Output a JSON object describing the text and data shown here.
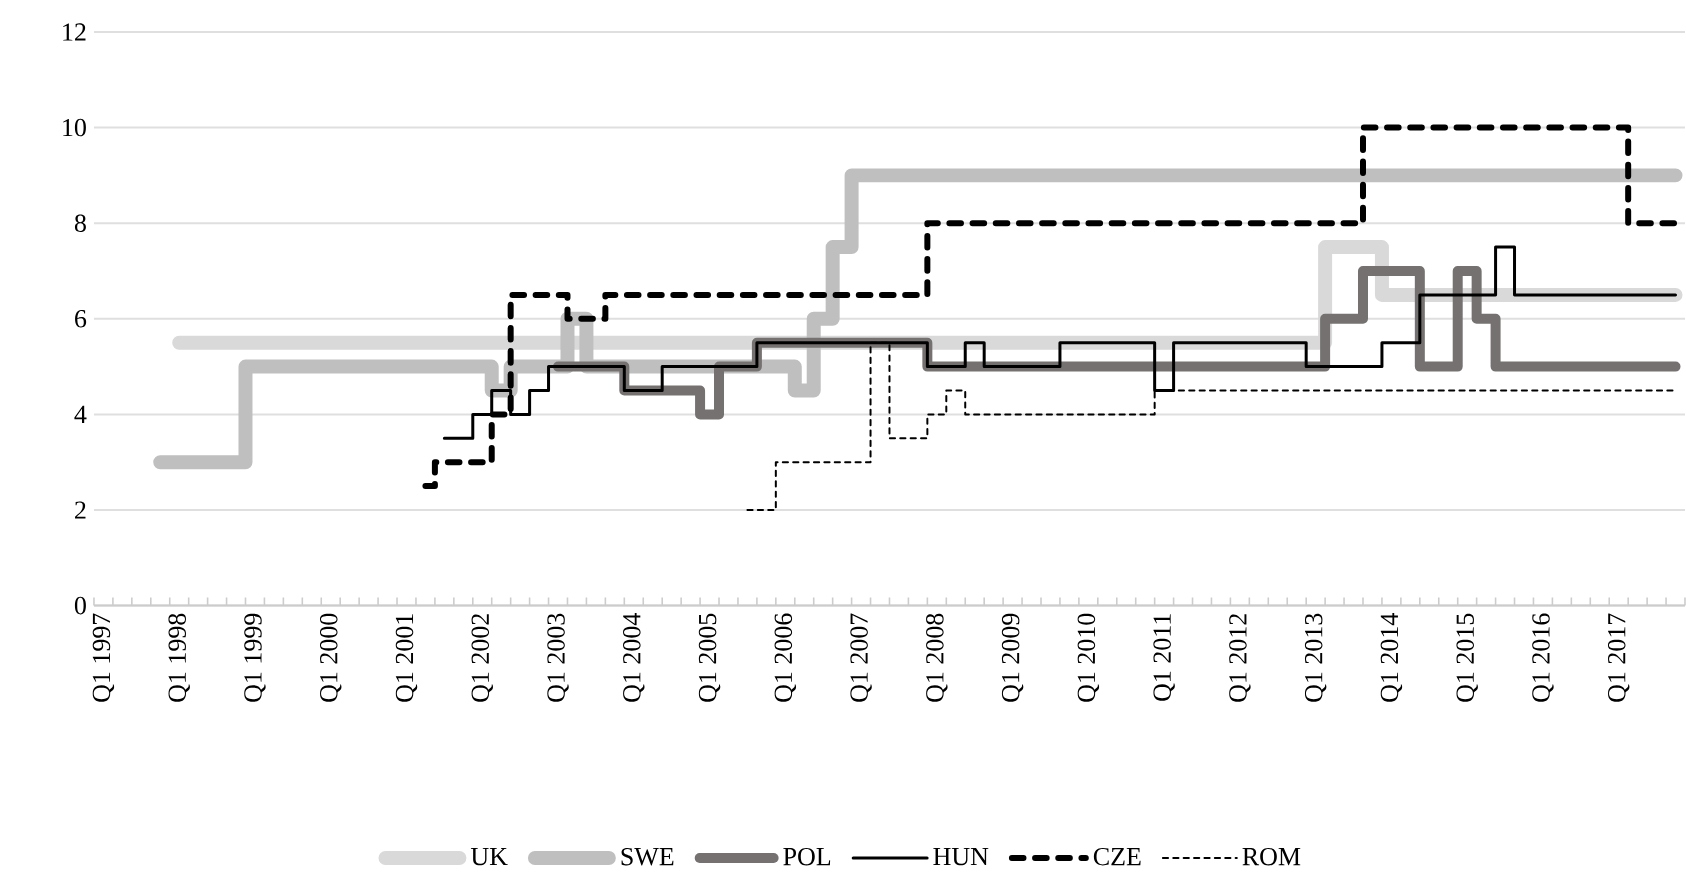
{
  "chart_data": {
    "type": "step",
    "categories": [
      "Q1 1997",
      null,
      null,
      null,
      "Q1 1998",
      null,
      null,
      null,
      "Q1 1999",
      null,
      null,
      null,
      "Q1 2000",
      null,
      null,
      null,
      "Q1 2001",
      null,
      null,
      null,
      "Q1 2002",
      null,
      null,
      null,
      "Q1 2003",
      null,
      null,
      null,
      "Q1 2004",
      null,
      null,
      null,
      "Q1 2005",
      null,
      null,
      null,
      "Q1 2006",
      null,
      null,
      null,
      "Q1 2007",
      null,
      null,
      null,
      "Q1 2008",
      null,
      null,
      null,
      "Q1 2009",
      null,
      null,
      null,
      "Q1 2010",
      null,
      null,
      null,
      "Q1 2011",
      null,
      null,
      null,
      "Q1 2012",
      null,
      null,
      null,
      "Q1 2013",
      null,
      null,
      null,
      "Q1 2014",
      null,
      null,
      null,
      "Q1 2015",
      null,
      null,
      null,
      "Q1 2016",
      null,
      null,
      null,
      "Q1 2017",
      null,
      null,
      null
    ],
    "ylim": [
      0,
      12
    ],
    "yticks": [
      0,
      2,
      4,
      6,
      8,
      10,
      12
    ],
    "grid": "y",
    "legend": "bottom",
    "series": [
      {
        "name": "UK",
        "color": "#d9d9d9",
        "line_style": "solid",
        "values": [
          null,
          null,
          null,
          null,
          5.5,
          5.5,
          5.5,
          5.5,
          5.5,
          5.5,
          5.5,
          5.5,
          5.5,
          5.5,
          5.5,
          5.5,
          5.5,
          5.5,
          5.5,
          5.5,
          5.5,
          5.5,
          5.5,
          5.5,
          5.5,
          5.5,
          5.5,
          5.5,
          5.5,
          5.5,
          5.5,
          5.5,
          5.5,
          5.5,
          5.5,
          5.5,
          5.5,
          5.5,
          5.5,
          5.5,
          5.5,
          5.5,
          5.5,
          5.5,
          5.5,
          5.5,
          5.5,
          5.5,
          5.5,
          5.5,
          5.5,
          5.5,
          5.5,
          5.5,
          5.5,
          5.5,
          5.5,
          5.5,
          5.5,
          5.5,
          5.5,
          5.5,
          5.5,
          5.5,
          5.5,
          7.5,
          7.5,
          7.5,
          6.5,
          6.5,
          6.5,
          6.5,
          6.5,
          6.5,
          6.5,
          6.5,
          6.5,
          6.5,
          6.5,
          6.5,
          6.5,
          6.5,
          6.5,
          6.5
        ]
      },
      {
        "name": "SWE",
        "color": "#bfbfbf",
        "line_style": "solid",
        "values": [
          null,
          null,
          null,
          3,
          3,
          3,
          3,
          3,
          5,
          5,
          5,
          5,
          5,
          5,
          5,
          5,
          5,
          5,
          5,
          5,
          5,
          4.5,
          5,
          5,
          5,
          6,
          5,
          5,
          5,
          5,
          5,
          5,
          5,
          5,
          5,
          5,
          5,
          4.5,
          6,
          7.5,
          9,
          9,
          9,
          9,
          9,
          9,
          9,
          9,
          9,
          9,
          9,
          9,
          9,
          9,
          9,
          9,
          9,
          9,
          9,
          9,
          9,
          9,
          9,
          9,
          9,
          9,
          9,
          9,
          9,
          9,
          9,
          9,
          9,
          9,
          9,
          9,
          9,
          9,
          9,
          9,
          9,
          9,
          9,
          9
        ]
      },
      {
        "name": "POL",
        "color": "#767171",
        "line_style": "solid",
        "values": [
          null,
          null,
          null,
          null,
          null,
          null,
          null,
          null,
          null,
          null,
          null,
          null,
          null,
          null,
          null,
          null,
          null,
          null,
          null,
          null,
          null,
          null,
          null,
          null,
          5,
          5,
          5,
          5,
          4.5,
          4.5,
          4.5,
          4.5,
          4,
          5,
          5,
          5.5,
          5.5,
          5.5,
          5.5,
          5.5,
          5.5,
          5.5,
          5.5,
          5.5,
          5,
          5,
          5,
          5,
          5,
          5,
          5,
          5,
          5,
          5,
          5,
          5,
          5,
          5,
          5,
          5,
          5,
          5,
          5,
          5,
          5,
          6,
          6,
          7,
          7,
          7,
          5,
          5,
          7,
          6,
          5,
          5,
          5,
          5,
          5,
          5,
          5,
          5,
          5,
          5
        ]
      },
      {
        "name": "HUN",
        "color": "#000000",
        "line_style": "solid",
        "values": [
          null,
          null,
          null,
          null,
          null,
          null,
          null,
          null,
          null,
          null,
          null,
          null,
          null,
          null,
          null,
          null,
          null,
          null,
          3.5,
          3.5,
          4,
          4.5,
          4,
          4.5,
          5,
          5,
          5,
          5,
          4.5,
          4.5,
          5,
          5,
          5,
          5,
          5,
          5.5,
          5.5,
          5.5,
          5.5,
          5.5,
          5.5,
          5.5,
          5.5,
          5.5,
          5,
          5,
          5.5,
          5,
          5,
          5,
          5,
          5.5,
          5.5,
          5.5,
          5.5,
          5.5,
          4.5,
          5.5,
          5.5,
          5.5,
          5.5,
          5.5,
          5.5,
          5.5,
          5,
          5,
          5,
          5,
          5.5,
          5.5,
          6.5,
          6.5,
          6.5,
          6.5,
          7.5,
          6.5,
          6.5,
          6.5,
          6.5,
          6.5,
          6.5,
          6.5,
          6.5,
          6.5
        ]
      },
      {
        "name": "CZE",
        "color": "#000000",
        "line_style": "dashed",
        "values": [
          null,
          null,
          null,
          null,
          null,
          null,
          null,
          null,
          null,
          null,
          null,
          null,
          null,
          null,
          null,
          null,
          null,
          2.5,
          3,
          3,
          3,
          4,
          6.5,
          6.5,
          6.5,
          6,
          6,
          6.5,
          6.5,
          6.5,
          6.5,
          6.5,
          6.5,
          6.5,
          6.5,
          6.5,
          6.5,
          6.5,
          6.5,
          6.5,
          6.5,
          6.5,
          6.5,
          6.5,
          8,
          8,
          8,
          8,
          8,
          8,
          8,
          8,
          8,
          8,
          8,
          8,
          8,
          8,
          8,
          8,
          8,
          8,
          8,
          8,
          8,
          8,
          8,
          10,
          10,
          10,
          10,
          10,
          10,
          10,
          10,
          10,
          10,
          10,
          10,
          10,
          10,
          8,
          8,
          8
        ]
      },
      {
        "name": "ROM",
        "color": "#000000",
        "line_style": "dashed",
        "values": [
          null,
          null,
          null,
          null,
          null,
          null,
          null,
          null,
          null,
          null,
          null,
          null,
          null,
          null,
          null,
          null,
          null,
          null,
          null,
          null,
          null,
          null,
          null,
          null,
          null,
          null,
          null,
          null,
          null,
          null,
          null,
          null,
          null,
          null,
          2,
          2,
          3,
          3,
          3,
          3,
          3,
          5.5,
          3.5,
          3.5,
          4,
          4.5,
          4,
          4,
          4,
          4,
          4,
          4,
          4,
          4,
          4,
          4,
          4.5,
          4.5,
          4.5,
          4.5,
          4.5,
          4.5,
          4.5,
          4.5,
          4.5,
          4.5,
          4.5,
          4.5,
          4.5,
          4.5,
          4.5,
          4.5,
          4.5,
          4.5,
          4.5,
          4.5,
          4.5,
          4.5,
          4.5,
          4.5,
          4.5,
          4.5,
          4.5,
          4.5
        ]
      }
    ]
  }
}
